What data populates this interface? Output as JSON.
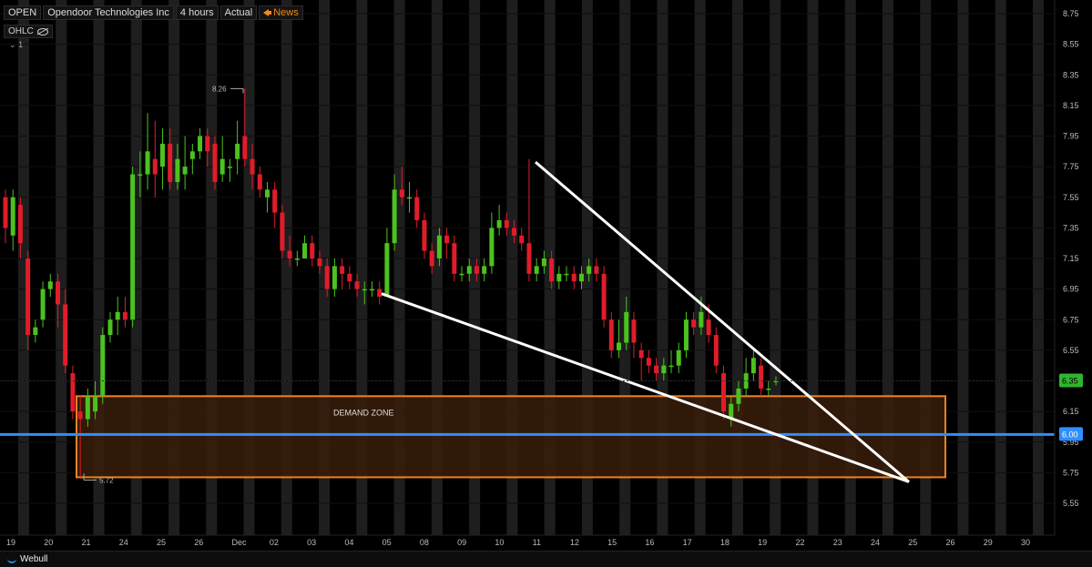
{
  "header": {
    "symbol": "OPEN",
    "company": "Opendoor Technologies Inc",
    "interval": "4 hours",
    "mode": "Actual",
    "news_label": "News"
  },
  "indicator": {
    "label": "OHLC",
    "sub": "1"
  },
  "footer": {
    "brand": "Webull"
  },
  "colors": {
    "up": "#4cc21e",
    "down": "#e01c2b",
    "zone_fill": "#3a1d0a",
    "zone_border": "#f0821e",
    "support_line": "#2f8fff",
    "price_tag": "#2fb52f"
  },
  "annotations": {
    "high_label": "8.26",
    "low_label": "5.72",
    "zone_label": "DEMAND ZONE",
    "current_price": "6.35",
    "line_price": "6.00"
  },
  "chart_data": {
    "type": "candlestick",
    "title": "",
    "ylim": [
      5.4,
      8.83
    ],
    "y_ticks": [
      "8.75",
      "8.55",
      "8.35",
      "8.15",
      "7.95",
      "7.75",
      "7.55",
      "7.35",
      "7.15",
      "6.95",
      "6.75",
      "6.55",
      "6.35",
      "6.15",
      "5.95",
      "5.75",
      "5.55"
    ],
    "x_ticks": [
      "19",
      "20",
      "21",
      "24",
      "25",
      "26",
      "Dec",
      "02",
      "03",
      "04",
      "05",
      "08",
      "09",
      "10",
      "11",
      "12",
      "15",
      "16",
      "17",
      "18",
      "19",
      "22",
      "23",
      "24",
      "25",
      "26",
      "29",
      "30"
    ],
    "support_level": 6.0,
    "demand_zone": {
      "from_price": 5.72,
      "to_price": 6.25
    },
    "candles": [
      [
        7.55,
        7.35,
        7.6,
        7.25
      ],
      [
        7.3,
        7.55,
        7.6,
        7.2
      ],
      [
        7.5,
        7.25,
        7.55,
        7.15
      ],
      [
        7.15,
        6.65,
        7.2,
        6.55
      ],
      [
        6.65,
        6.7,
        6.75,
        6.6
      ],
      [
        6.75,
        6.95,
        7.0,
        6.7
      ],
      [
        6.95,
        7.0,
        7.05,
        6.9
      ],
      [
        7.0,
        6.85,
        7.05,
        6.7
      ],
      [
        6.85,
        6.45,
        6.95,
        6.4
      ],
      [
        6.4,
        6.15,
        6.45,
        6.1
      ],
      [
        6.15,
        6.1,
        6.25,
        5.72
      ],
      [
        6.1,
        6.25,
        6.3,
        6.05
      ],
      [
        6.15,
        6.25,
        6.35,
        6.1
      ],
      [
        6.25,
        6.65,
        6.7,
        6.2
      ],
      [
        6.65,
        6.75,
        6.8,
        6.6
      ],
      [
        6.75,
        6.8,
        6.9,
        6.65
      ],
      [
        6.8,
        6.75,
        6.9,
        6.7
      ],
      [
        6.75,
        7.7,
        7.75,
        6.7
      ],
      [
        7.7,
        7.7,
        7.85,
        7.55
      ],
      [
        7.7,
        7.85,
        8.1,
        7.6
      ],
      [
        7.8,
        7.7,
        8.05,
        7.55
      ],
      [
        7.75,
        7.9,
        8.0,
        7.6
      ],
      [
        7.9,
        7.65,
        8.0,
        7.6
      ],
      [
        7.65,
        7.8,
        7.9,
        7.6
      ],
      [
        7.7,
        7.75,
        7.95,
        7.6
      ],
      [
        7.8,
        7.85,
        7.9,
        7.7
      ],
      [
        7.85,
        7.95,
        8.0,
        7.8
      ],
      [
        7.95,
        7.85,
        8.0,
        7.75
      ],
      [
        7.9,
        7.65,
        7.95,
        7.6
      ],
      [
        7.7,
        7.8,
        7.95,
        7.65
      ],
      [
        7.75,
        7.75,
        7.8,
        7.65
      ],
      [
        7.8,
        7.9,
        8.05,
        7.7
      ],
      [
        7.95,
        7.8,
        8.26,
        7.75
      ],
      [
        7.8,
        7.7,
        7.9,
        7.6
      ],
      [
        7.7,
        7.6,
        7.75,
        7.55
      ],
      [
        7.55,
        7.6,
        7.65,
        7.45
      ],
      [
        7.6,
        7.45,
        7.65,
        7.35
      ],
      [
        7.45,
        7.2,
        7.5,
        7.15
      ],
      [
        7.2,
        7.15,
        7.3,
        7.1
      ],
      [
        7.15,
        7.15,
        7.2,
        7.1
      ],
      [
        7.15,
        7.25,
        7.3,
        7.15
      ],
      [
        7.25,
        7.15,
        7.3,
        7.1
      ],
      [
        7.15,
        7.1,
        7.2,
        7.05
      ],
      [
        7.1,
        6.95,
        7.15,
        6.9
      ],
      [
        6.95,
        7.1,
        7.15,
        6.9
      ],
      [
        7.1,
        7.05,
        7.15,
        6.95
      ],
      [
        7.05,
        7.0,
        7.1,
        6.95
      ],
      [
        7.0,
        6.95,
        7.05,
        6.9
      ],
      [
        6.95,
        6.95,
        7.0,
        6.85
      ],
      [
        6.95,
        6.95,
        7.0,
        6.9
      ],
      [
        6.95,
        6.9,
        7.0,
        6.85
      ],
      [
        6.9,
        7.25,
        7.35,
        6.9
      ],
      [
        7.25,
        7.6,
        7.7,
        7.2
      ],
      [
        7.6,
        7.55,
        7.75,
        7.5
      ],
      [
        7.55,
        7.55,
        7.65,
        7.45
      ],
      [
        7.55,
        7.4,
        7.6,
        7.35
      ],
      [
        7.4,
        7.2,
        7.45,
        7.15
      ],
      [
        7.2,
        7.1,
        7.25,
        7.05
      ],
      [
        7.15,
        7.3,
        7.35,
        7.1
      ],
      [
        7.3,
        7.25,
        7.35,
        7.15
      ],
      [
        7.25,
        7.05,
        7.3,
        7.0
      ],
      [
        7.05,
        7.05,
        7.1,
        7.0
      ],
      [
        7.05,
        7.1,
        7.15,
        7.0
      ],
      [
        7.1,
        7.05,
        7.15,
        7.0
      ],
      [
        7.05,
        7.1,
        7.15,
        7.0
      ],
      [
        7.1,
        7.35,
        7.45,
        7.05
      ],
      [
        7.35,
        7.4,
        7.5,
        7.3
      ],
      [
        7.4,
        7.35,
        7.45,
        7.3
      ],
      [
        7.35,
        7.3,
        7.4,
        7.25
      ],
      [
        7.3,
        7.25,
        7.35,
        7.2
      ],
      [
        7.25,
        7.05,
        7.8,
        7.0
      ],
      [
        7.05,
        7.1,
        7.15,
        7.0
      ],
      [
        7.1,
        7.15,
        7.2,
        7.05
      ],
      [
        7.15,
        7.0,
        7.2,
        6.95
      ],
      [
        7.0,
        7.05,
        7.1,
        6.95
      ],
      [
        7.05,
        7.05,
        7.1,
        7.0
      ],
      [
        7.05,
        7.0,
        7.1,
        6.95
      ],
      [
        7.0,
        7.05,
        7.1,
        6.95
      ],
      [
        7.05,
        7.1,
        7.15,
        7.0
      ],
      [
        7.1,
        7.05,
        7.15,
        7.0
      ],
      [
        7.05,
        6.75,
        7.1,
        6.7
      ],
      [
        6.75,
        6.55,
        6.8,
        6.5
      ],
      [
        6.55,
        6.6,
        6.75,
        6.5
      ],
      [
        6.6,
        6.8,
        6.9,
        6.55
      ],
      [
        6.75,
        6.6,
        6.8,
        6.5
      ],
      [
        6.55,
        6.5,
        6.6,
        6.35
      ],
      [
        6.5,
        6.45,
        6.55,
        6.4
      ],
      [
        6.45,
        6.4,
        6.5,
        6.35
      ],
      [
        6.4,
        6.45,
        6.5,
        6.35
      ],
      [
        6.45,
        6.45,
        6.55,
        6.4
      ],
      [
        6.45,
        6.55,
        6.6,
        6.4
      ],
      [
        6.55,
        6.75,
        6.8,
        6.5
      ],
      [
        6.75,
        6.7,
        6.8,
        6.65
      ],
      [
        6.7,
        6.8,
        6.9,
        6.65
      ],
      [
        6.75,
        6.65,
        6.85,
        6.6
      ],
      [
        6.65,
        6.45,
        6.7,
        6.4
      ],
      [
        6.4,
        6.15,
        6.45,
        6.1
      ],
      [
        6.1,
        6.2,
        6.25,
        6.05
      ],
      [
        6.2,
        6.3,
        6.35,
        6.15
      ],
      [
        6.3,
        6.4,
        6.5,
        6.25
      ],
      [
        6.4,
        6.5,
        6.55,
        6.35
      ],
      [
        6.45,
        6.3,
        6.5,
        6.25
      ],
      [
        6.3,
        6.3,
        6.35,
        6.25
      ],
      [
        6.35,
        6.35,
        6.38,
        6.32
      ]
    ]
  }
}
